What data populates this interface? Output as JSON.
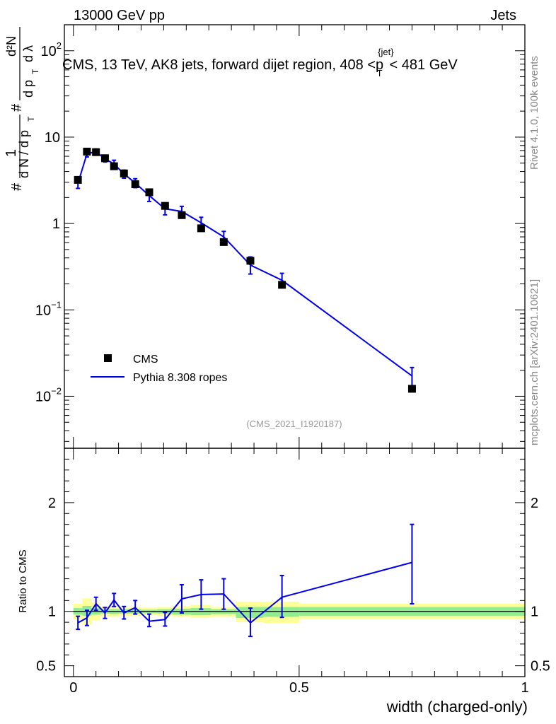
{
  "header": {
    "energy_label": "13000 GeV pp",
    "process_label": "Jets",
    "analysis_id": "(CMS_2021_I1920187)"
  },
  "side_labels": {
    "rivet": "Rivet 4.1.0,  100k events",
    "site": "mcplots.cern.ch [arXiv:2401.10621]"
  },
  "chart_data": [
    {
      "type": "line",
      "panel": "main",
      "title": "CMS, 13 TeV, AK8 jets, forward dijet region, 408 < p_T^{jet} < 481 GeV",
      "title_parts": {
        "pre": "CMS, 13 TeV, AK8 jets, forward dijet region, 408 <p",
        "sup": "{jet}",
        "sub": "T",
        "post": "< 481 GeV"
      },
      "ylabel": "1/(dN/dp_T) dN²/(dp_T dλ)",
      "ylabel_parts": {
        "hash": "#",
        "one": "1",
        "dn": "d N / d p",
        "t": "T",
        "d2n": "d²N",
        "dp": "d p",
        "dl": "d λ"
      },
      "yscale": "log",
      "ylim": [
        0.0025,
        200
      ],
      "xlim": [
        -0.02,
        1.0
      ],
      "grid": false,
      "y_tick_labels": [
        {
          "value": 100,
          "base": "10",
          "exp": "2"
        },
        {
          "value": 10,
          "base": "10",
          "exp": ""
        },
        {
          "value": 1,
          "base": "1",
          "exp": ""
        },
        {
          "value": 0.1,
          "base": "10",
          "exp": "−1"
        },
        {
          "value": 0.01,
          "base": "10",
          "exp": "−2"
        }
      ],
      "legend": {
        "position": "lower-left",
        "entries": [
          {
            "label": "CMS",
            "marker": "square",
            "color": "#000000"
          },
          {
            "label": "Pythia 8.308 ropes",
            "marker": "line",
            "color": "#0000ee"
          }
        ]
      },
      "series": [
        {
          "name": "CMS",
          "color": "#000000",
          "points": [
            {
              "x": 0.01,
              "y": 3.2
            },
            {
              "x": 0.03,
              "y": 6.8
            },
            {
              "x": 0.05,
              "y": 6.7
            },
            {
              "x": 0.07,
              "y": 5.7
            },
            {
              "x": 0.09,
              "y": 4.6
            },
            {
              "x": 0.112,
              "y": 3.8
            },
            {
              "x": 0.137,
              "y": 2.85
            },
            {
              "x": 0.168,
              "y": 2.3
            },
            {
              "x": 0.203,
              "y": 1.6
            },
            {
              "x": 0.24,
              "y": 1.25
            },
            {
              "x": 0.283,
              "y": 0.88
            },
            {
              "x": 0.333,
              "y": 0.61
            },
            {
              "x": 0.392,
              "y": 0.37
            },
            {
              "x": 0.462,
              "y": 0.195
            },
            {
              "x": 0.75,
              "y": 0.0122
            }
          ]
        },
        {
          "name": "Pythia 8.308 ropes",
          "color": "#0000ee",
          "points": [
            {
              "x": 0.01,
              "y": 2.9,
              "lo": 2.55,
              "hi": 3.3
            },
            {
              "x": 0.03,
              "y": 6.4,
              "lo": 5.9,
              "hi": 6.9
            },
            {
              "x": 0.05,
              "y": 6.8,
              "lo": 6.3,
              "hi": 7.3
            },
            {
              "x": 0.07,
              "y": 5.6,
              "lo": 5.15,
              "hi": 6.05
            },
            {
              "x": 0.09,
              "y": 4.9,
              "lo": 4.4,
              "hi": 5.4
            },
            {
              "x": 0.112,
              "y": 3.75,
              "lo": 3.35,
              "hi": 4.15
            },
            {
              "x": 0.137,
              "y": 2.95,
              "lo": 2.6,
              "hi": 3.3
            },
            {
              "x": 0.168,
              "y": 2.1,
              "lo": 1.8,
              "hi": 2.45
            },
            {
              "x": 0.203,
              "y": 1.48,
              "lo": 1.26,
              "hi": 1.72
            },
            {
              "x": 0.24,
              "y": 1.38,
              "lo": 1.19,
              "hi": 1.58
            },
            {
              "x": 0.283,
              "y": 1.02,
              "lo": 0.86,
              "hi": 1.18
            },
            {
              "x": 0.333,
              "y": 0.7,
              "lo": 0.59,
              "hi": 0.81
            },
            {
              "x": 0.392,
              "y": 0.33,
              "lo": 0.26,
              "hi": 0.41
            },
            {
              "x": 0.462,
              "y": 0.22,
              "lo": 0.18,
              "hi": 0.265
            },
            {
              "x": 0.75,
              "y": 0.0172,
              "lo": 0.0128,
              "hi": 0.0215
            }
          ]
        }
      ]
    },
    {
      "type": "line",
      "panel": "ratio",
      "ylabel": "Ratio to CMS",
      "xlabel": "width (charged-only)",
      "ylim": [
        0.4,
        2.5
      ],
      "xlim": [
        -0.02,
        1.0
      ],
      "x_ticks": [
        {
          "value": 0,
          "label": "0"
        },
        {
          "value": 0.5,
          "label": "0.5"
        },
        {
          "value": 1,
          "label": "1"
        }
      ],
      "y_ticks": [
        {
          "value": 0.5,
          "label": "0.5"
        },
        {
          "value": 1,
          "label": "1"
        },
        {
          "value": 2,
          "label": "2"
        }
      ],
      "bands": {
        "inner_color": "#90ee90",
        "outer_color": "#ffff99",
        "bins": [
          {
            "x0": 0.0,
            "x1": 0.02,
            "inner": [
              0.97,
              1.03
            ],
            "outer": [
              0.93,
              1.07
            ]
          },
          {
            "x0": 0.02,
            "x1": 0.04,
            "inner": [
              0.96,
              1.05
            ],
            "outer": [
              0.88,
              1.12
            ]
          },
          {
            "x0": 0.04,
            "x1": 0.06,
            "inner": [
              0.97,
              1.03
            ],
            "outer": [
              0.92,
              1.08
            ]
          },
          {
            "x0": 0.06,
            "x1": 0.08,
            "inner": [
              0.98,
              1.02
            ],
            "outer": [
              0.95,
              1.05
            ]
          },
          {
            "x0": 0.08,
            "x1": 0.1,
            "inner": [
              0.975,
              1.02
            ],
            "outer": [
              0.95,
              1.05
            ]
          },
          {
            "x0": 0.1,
            "x1": 0.125,
            "inner": [
              0.98,
              1.02
            ],
            "outer": [
              0.96,
              1.04
            ]
          },
          {
            "x0": 0.125,
            "x1": 0.15,
            "inner": [
              0.98,
              1.02
            ],
            "outer": [
              0.96,
              1.04
            ]
          },
          {
            "x0": 0.15,
            "x1": 0.185,
            "inner": [
              0.985,
              1.015
            ],
            "outer": [
              0.965,
              1.035
            ]
          },
          {
            "x0": 0.185,
            "x1": 0.22,
            "inner": [
              0.98,
              1.02
            ],
            "outer": [
              0.96,
              1.04
            ]
          },
          {
            "x0": 0.22,
            "x1": 0.26,
            "inner": [
              0.97,
              1.025
            ],
            "outer": [
              0.95,
              1.05
            ]
          },
          {
            "x0": 0.26,
            "x1": 0.305,
            "inner": [
              0.965,
              1.03
            ],
            "outer": [
              0.94,
              1.06
            ]
          },
          {
            "x0": 0.305,
            "x1": 0.36,
            "inner": [
              0.975,
              1.02
            ],
            "outer": [
              0.95,
              1.04
            ]
          },
          {
            "x0": 0.36,
            "x1": 0.42,
            "inner": [
              0.94,
              1.04
            ],
            "outer": [
              0.9,
              1.09
            ]
          },
          {
            "x0": 0.42,
            "x1": 0.5,
            "inner": [
              0.95,
              1.04
            ],
            "outer": [
              0.89,
              1.09
            ]
          },
          {
            "x0": 0.5,
            "x1": 1.0,
            "inner": [
              0.96,
              1.04
            ],
            "outer": [
              0.93,
              1.07
            ]
          }
        ]
      },
      "series": [
        {
          "name": "Pythia 8.308 ropes / CMS",
          "color": "#0000ee",
          "points": [
            {
              "x": 0.01,
              "y": 0.895,
              "lo": 0.835,
              "hi": 0.955
            },
            {
              "x": 0.03,
              "y": 0.94,
              "lo": 0.87,
              "hi": 1.01
            },
            {
              "x": 0.05,
              "y": 1.07,
              "lo": 1.01,
              "hi": 1.13
            },
            {
              "x": 0.07,
              "y": 0.985,
              "lo": 0.935,
              "hi": 1.035
            },
            {
              "x": 0.09,
              "y": 1.105,
              "lo": 1.045,
              "hi": 1.165
            },
            {
              "x": 0.112,
              "y": 0.985,
              "lo": 0.93,
              "hi": 1.045
            },
            {
              "x": 0.137,
              "y": 1.035,
              "lo": 0.975,
              "hi": 1.1
            },
            {
              "x": 0.168,
              "y": 0.91,
              "lo": 0.86,
              "hi": 0.975
            },
            {
              "x": 0.203,
              "y": 0.925,
              "lo": 0.865,
              "hi": 0.99
            },
            {
              "x": 0.24,
              "y": 1.115,
              "lo": 0.985,
              "hi": 1.245
            },
            {
              "x": 0.283,
              "y": 1.155,
              "lo": 1.02,
              "hi": 1.29
            },
            {
              "x": 0.333,
              "y": 1.16,
              "lo": 1.02,
              "hi": 1.3
            },
            {
              "x": 0.392,
              "y": 0.895,
              "lo": 0.77,
              "hi": 1.03
            },
            {
              "x": 0.462,
              "y": 1.13,
              "lo": 0.945,
              "hi": 1.33
            },
            {
              "x": 0.75,
              "y": 1.45,
              "lo": 1.07,
              "hi": 1.8
            }
          ]
        }
      ]
    }
  ]
}
